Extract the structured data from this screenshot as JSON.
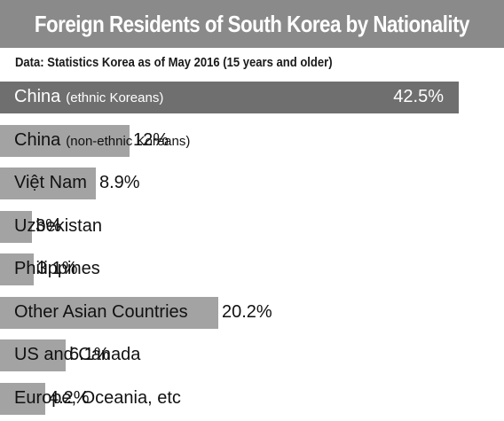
{
  "chart_data": {
    "type": "bar",
    "orientation": "horizontal",
    "title": "Foreign Residents of South Korea by Nationality",
    "subtitle": "Data: Statistics Korea as of May 2016 (15 years and older)",
    "categories": [
      {
        "name": "China",
        "note": "(ethnic Koreans)"
      },
      {
        "name": "China",
        "note": "(non-ethnic Koreans)"
      },
      {
        "name": "Việt Nam",
        "note": ""
      },
      {
        "name": "Uzbekistan",
        "note": ""
      },
      {
        "name": "Philippines",
        "note": ""
      },
      {
        "name": "Other Asian Countries",
        "note": ""
      },
      {
        "name": "US and Canada",
        "note": ""
      },
      {
        "name": "Europe, Oceania, etc",
        "note": ""
      }
    ],
    "values": [
      42.5,
      12,
      8.9,
      3,
      3.1,
      20.2,
      6.1,
      4.2
    ],
    "value_labels": [
      "42.5%",
      "12%",
      "8.9%",
      "3%",
      "3.1%",
      "20.2%",
      "6.1%",
      "4.2%"
    ],
    "unit": "%",
    "colors": {
      "highlight_bar": "#6f6f6f",
      "bar": "#a3a3a3",
      "title_bg": "#8a8a8a"
    }
  }
}
